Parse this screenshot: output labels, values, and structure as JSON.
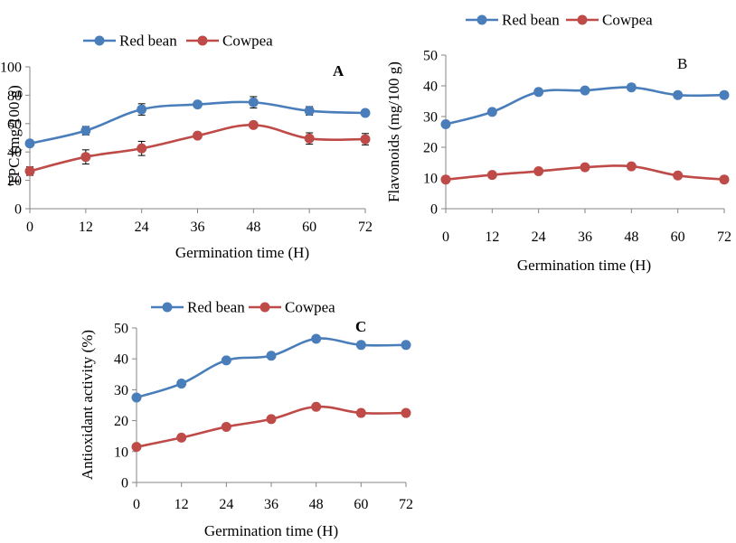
{
  "chart_data": [
    {
      "type": "line",
      "panel_label": "A",
      "xlabel": "Germination time (H)",
      "ylabel": "TPC (mg/100 g)",
      "x": [
        0,
        12,
        24,
        36,
        48,
        60,
        72
      ],
      "ylim": [
        0,
        100
      ],
      "yticks": [
        0,
        20,
        40,
        60,
        80,
        100
      ],
      "legend_position": "top",
      "grid": false,
      "series": [
        {
          "name": "Red bean",
          "color": "#4a7ebb",
          "values": [
            46,
            55,
            70,
            73.5,
            75,
            69,
            67.5
          ],
          "errors": [
            2,
            3,
            4,
            2,
            4,
            3,
            2
          ]
        },
        {
          "name": "Cowpea",
          "color": "#be4b48",
          "values": [
            26.5,
            36.5,
            42.5,
            51.5,
            59,
            49.5,
            49
          ],
          "errors": [
            3,
            5,
            5,
            2,
            2,
            4,
            4
          ]
        }
      ]
    },
    {
      "type": "line",
      "panel_label": "B",
      "xlabel": "Germination time (H)",
      "ylabel": "Flavonoids (mg/100 g)",
      "x": [
        0,
        12,
        24,
        36,
        48,
        60,
        72
      ],
      "ylim": [
        0,
        50
      ],
      "yticks": [
        0,
        10,
        20,
        30,
        40,
        50
      ],
      "legend_position": "top",
      "grid": false,
      "series": [
        {
          "name": "Red bean",
          "color": "#4a7ebb",
          "values": [
            27.5,
            31.5,
            38,
            38.5,
            39.5,
            37,
            37
          ]
        },
        {
          "name": "Cowpea",
          "color": "#be4b48",
          "values": [
            9.5,
            11,
            12.2,
            13.5,
            13.8,
            10.8,
            9.5
          ]
        }
      ]
    },
    {
      "type": "line",
      "panel_label": "C",
      "xlabel": "Germination time (H)",
      "ylabel": "Antioxidant activity (%)",
      "x": [
        0,
        12,
        24,
        36,
        48,
        60,
        72
      ],
      "ylim": [
        0,
        50
      ],
      "yticks": [
        0,
        10,
        20,
        30,
        40,
        50
      ],
      "legend_position": "top",
      "grid": false,
      "series": [
        {
          "name": "Red bean",
          "color": "#4a7ebb",
          "values": [
            27.5,
            32,
            39.5,
            41,
            46.5,
            44.5,
            44.5
          ]
        },
        {
          "name": "Cowpea",
          "color": "#be4b48",
          "values": [
            11.5,
            14.5,
            18,
            20.5,
            24.5,
            22.5,
            22.5
          ]
        }
      ]
    }
  ]
}
